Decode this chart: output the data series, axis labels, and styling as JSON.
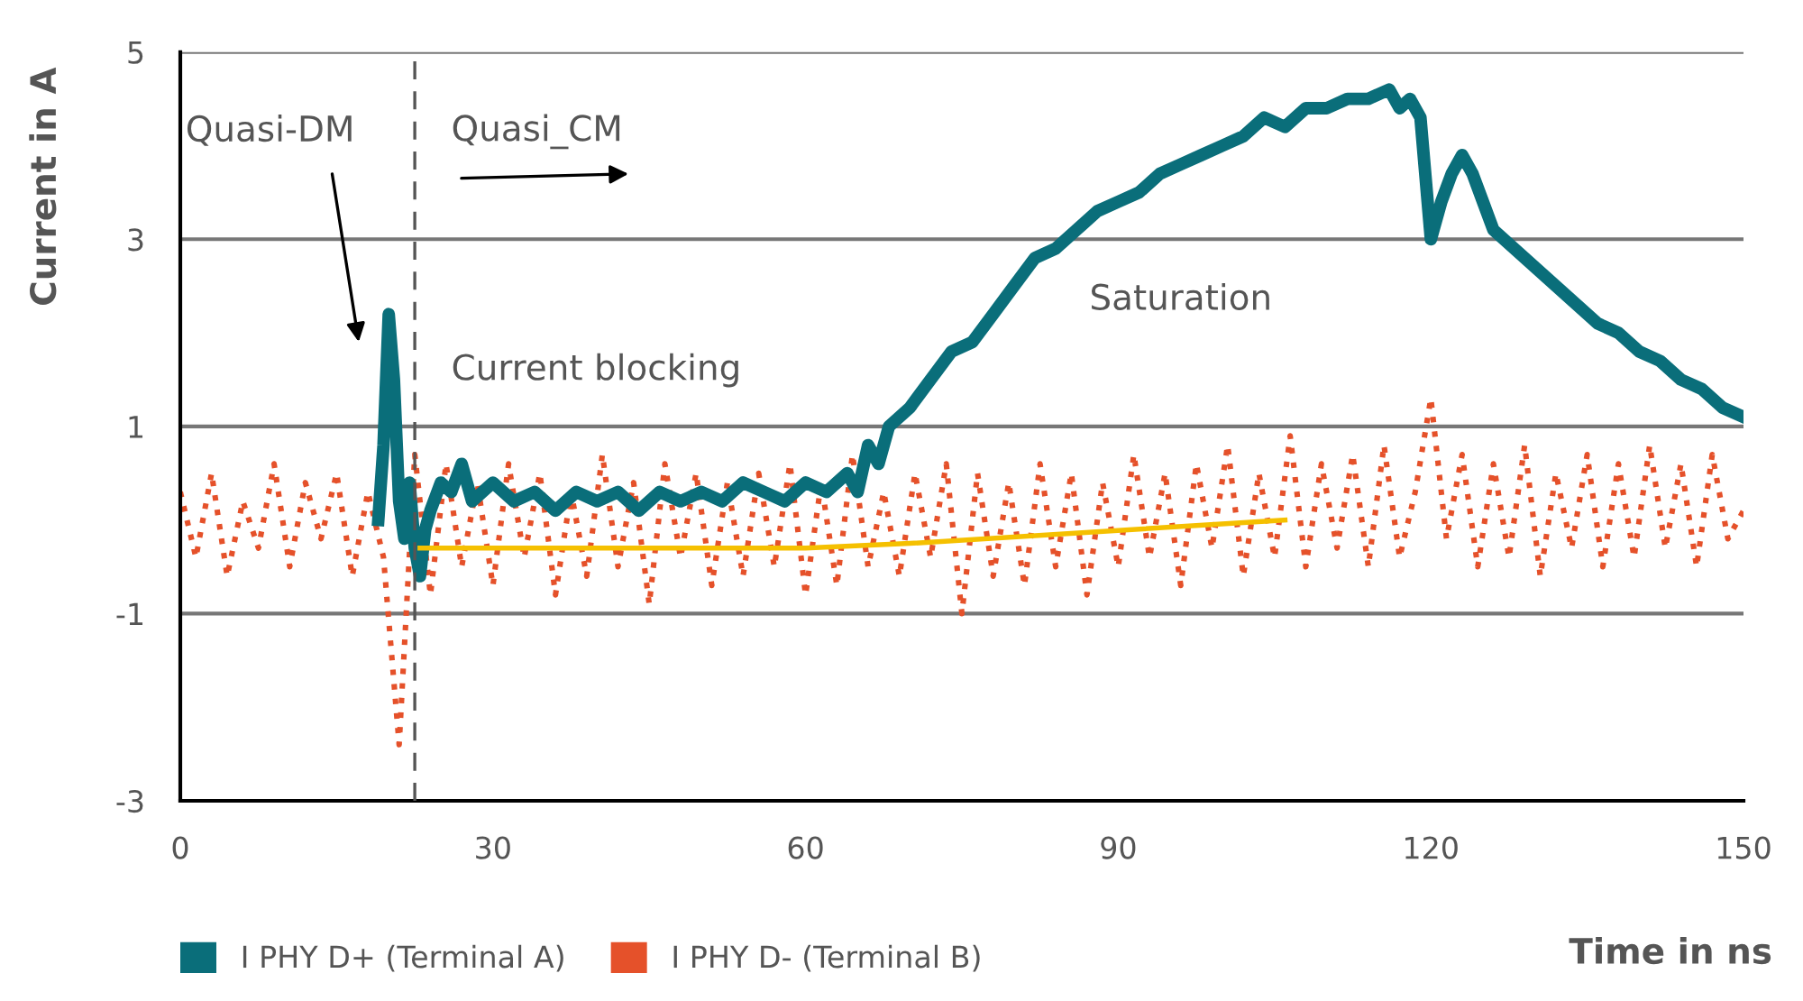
{
  "chart_data": {
    "type": "line",
    "xlabel": "Time in ns",
    "ylabel": "Current in A",
    "xlim": [
      0,
      150
    ],
    "xticks": [
      0,
      30,
      60,
      90,
      120,
      150
    ],
    "ylim": [
      -3,
      5
    ],
    "yticks": [
      -3,
      -1,
      1,
      3,
      5
    ],
    "grid": "y",
    "legend": "bottom left",
    "annotations": [
      "Quasi-DM",
      "Quasi_CM",
      "Current blocking",
      "Saturation"
    ],
    "ref_lines": [
      {
        "axis": "x",
        "value": 22.5,
        "color": "#555555",
        "line_style": "dashed"
      }
    ],
    "series": [
      {
        "name": "I PHY D+ (Terminal A)",
        "color": "#0a6e7a",
        "line_style": "solid",
        "x": [
          19,
          19.5,
          20,
          20.5,
          21,
          21.5,
          22,
          22.5,
          23,
          23.5,
          24,
          25,
          26,
          27,
          28,
          30,
          32,
          34,
          36,
          38,
          40,
          42,
          44,
          46,
          48,
          50,
          52,
          54,
          56,
          58,
          60,
          62,
          64,
          65,
          66,
          67,
          68,
          70,
          72,
          74,
          76,
          78,
          80,
          82,
          84,
          86,
          88,
          90,
          92,
          94,
          96,
          98,
          100,
          102,
          104,
          106,
          108,
          110,
          112,
          114,
          116,
          117,
          118,
          119,
          120,
          121,
          122,
          123,
          124,
          125,
          126,
          128,
          130,
          132,
          134,
          136,
          138,
          140,
          142,
          144,
          146,
          148,
          150
        ],
        "values": [
          0.0,
          0.8,
          2.2,
          1.5,
          0.2,
          -0.2,
          0.4,
          -0.3,
          -0.6,
          -0.1,
          0.1,
          0.4,
          0.3,
          0.6,
          0.2,
          0.4,
          0.2,
          0.3,
          0.1,
          0.3,
          0.2,
          0.3,
          0.1,
          0.3,
          0.2,
          0.3,
          0.2,
          0.4,
          0.3,
          0.2,
          0.4,
          0.3,
          0.5,
          0.3,
          0.8,
          0.6,
          1.0,
          1.2,
          1.5,
          1.8,
          1.9,
          2.2,
          2.5,
          2.8,
          2.9,
          3.1,
          3.3,
          3.4,
          3.5,
          3.7,
          3.8,
          3.9,
          4.0,
          4.1,
          4.3,
          4.2,
          4.4,
          4.4,
          4.5,
          4.5,
          4.6,
          4.4,
          4.5,
          4.3,
          3.0,
          3.4,
          3.7,
          3.9,
          3.7,
          3.4,
          3.1,
          2.9,
          2.7,
          2.5,
          2.3,
          2.1,
          2.0,
          1.8,
          1.7,
          1.5,
          1.4,
          1.2,
          1.1
        ]
      },
      {
        "name": "I PHY D- (Terminal B)",
        "color": "#e5512a",
        "line_style": "dotted",
        "x": [
          0,
          1.5,
          3,
          4.5,
          6,
          7.5,
          9,
          10.5,
          12,
          13.5,
          15,
          16.5,
          18,
          19.5,
          21,
          22.5,
          24,
          25.5,
          27,
          28.5,
          30,
          31.5,
          33,
          34.5,
          36,
          37.5,
          39,
          40.5,
          42,
          43.5,
          45,
          46.5,
          48,
          49.5,
          51,
          52.5,
          54,
          55.5,
          57,
          58.5,
          60,
          61.5,
          63,
          64.5,
          66,
          67.5,
          69,
          70.5,
          72,
          73.5,
          75,
          76.5,
          78,
          79.5,
          81,
          82.5,
          84,
          85.5,
          87,
          88.5,
          90,
          91.5,
          93,
          94.5,
          96,
          97.5,
          99,
          100.5,
          102,
          103.5,
          105,
          106.5,
          108,
          109.5,
          111,
          112.5,
          114,
          115.5,
          117,
          118.5,
          120,
          121.5,
          123,
          124.5,
          126,
          127.5,
          129,
          130.5,
          132,
          133.5,
          135,
          136.5,
          138,
          139.5,
          141,
          142.5,
          144,
          145.5,
          147,
          148.5,
          150
        ],
        "values": [
          0.3,
          -0.4,
          0.5,
          -0.6,
          0.2,
          -0.3,
          0.6,
          -0.5,
          0.4,
          -0.2,
          0.5,
          -0.6,
          0.3,
          -0.4,
          -2.4,
          0.7,
          -0.8,
          0.6,
          -0.5,
          0.4,
          -0.7,
          0.6,
          -0.4,
          0.5,
          -0.8,
          0.3,
          -0.6,
          0.7,
          -0.5,
          0.4,
          -0.9,
          0.6,
          -0.4,
          0.5,
          -0.7,
          0.4,
          -0.6,
          0.5,
          -0.5,
          0.6,
          -0.8,
          0.4,
          -0.7,
          0.7,
          -0.5,
          0.3,
          -0.6,
          0.5,
          -0.4,
          0.6,
          -1.0,
          0.5,
          -0.6,
          0.4,
          -0.7,
          0.6,
          -0.5,
          0.5,
          -0.8,
          0.4,
          -0.5,
          0.7,
          -0.4,
          0.5,
          -0.7,
          0.6,
          -0.3,
          0.8,
          -0.6,
          0.5,
          -0.4,
          0.9,
          -0.5,
          0.6,
          -0.3,
          0.7,
          -0.5,
          0.8,
          -0.4,
          0.3,
          1.3,
          -0.2,
          0.7,
          -0.5,
          0.6,
          -0.4,
          0.8,
          -0.6,
          0.5,
          -0.3,
          0.7,
          -0.5,
          0.6,
          -0.4,
          0.8,
          -0.3,
          0.6,
          -0.5,
          0.7,
          -0.2,
          0.1
        ]
      },
      {
        "color": "#f5c000",
        "line_style": "solid",
        "x": [
          23,
          60,
          70,
          106
        ],
        "values": [
          -0.3,
          -0.3,
          -0.25,
          0.0
        ]
      }
    ]
  }
}
